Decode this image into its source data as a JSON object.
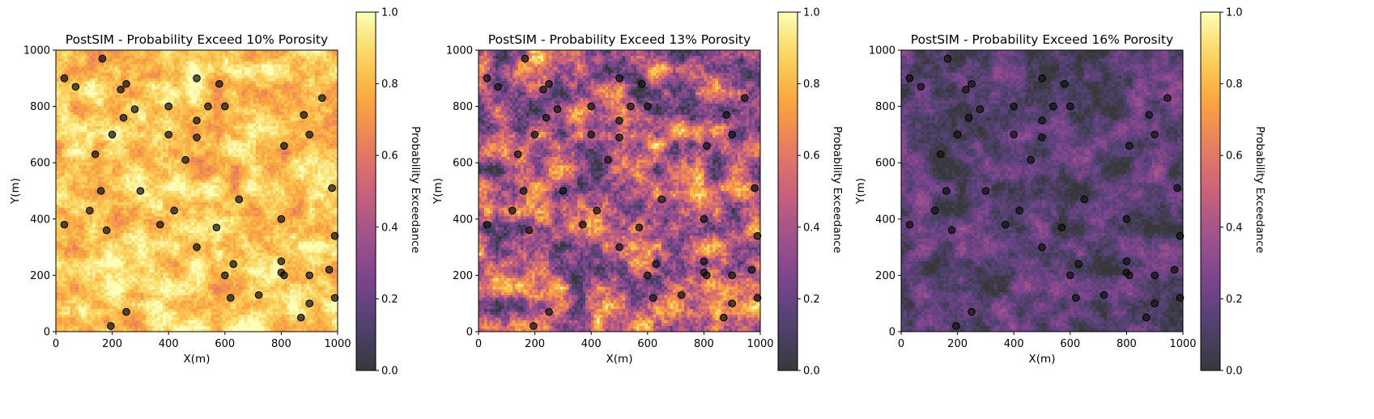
{
  "chart_data": [
    {
      "type": "heatmap",
      "title": "PostSIM - Probability Exceed 10% Porosity",
      "xlabel": "X(m)",
      "ylabel": "Y(m)",
      "xlim": [
        0,
        1000
      ],
      "ylim": [
        0,
        1000
      ],
      "xticks": [
        "0",
        "200",
        "400",
        "600",
        "800",
        "1000"
      ],
      "yticks": [
        "0",
        "200",
        "400",
        "600",
        "800",
        "1000"
      ],
      "colorbar": {
        "label": "Probability Exceedance",
        "range": [
          0,
          1
        ],
        "ticks": [
          "0.0",
          "0.2",
          "0.4",
          "0.6",
          "0.8",
          "1.0"
        ],
        "colormap": "inferno"
      },
      "field_mean_probability": 0.85,
      "grid_cells": [
        100,
        100
      ],
      "overlay_points": "well locations (dark circles)"
    },
    {
      "type": "heatmap",
      "title": "PostSIM - Probability Exceed 13% Porosity",
      "xlabel": "X(m)",
      "ylabel": "Y(m)",
      "xlim": [
        0,
        1000
      ],
      "ylim": [
        0,
        1000
      ],
      "xticks": [
        "0",
        "200",
        "400",
        "600",
        "800",
        "1000"
      ],
      "yticks": [
        "0",
        "200",
        "400",
        "600",
        "800",
        "1000"
      ],
      "colorbar": {
        "label": "Probability Exceedance",
        "range": [
          0,
          1
        ],
        "ticks": [
          "0.0",
          "0.2",
          "0.4",
          "0.6",
          "0.8",
          "1.0"
        ],
        "colormap": "inferno"
      },
      "field_mean_probability": 0.45,
      "grid_cells": [
        100,
        100
      ],
      "overlay_points": "well locations (dark circles)"
    },
    {
      "type": "heatmap",
      "title": "PostSIM - Probability Exceed 16% Porosity",
      "xlabel": "X(m)",
      "ylabel": "Y(m)",
      "xlim": [
        0,
        1000
      ],
      "ylim": [
        0,
        1000
      ],
      "xticks": [
        "0",
        "200",
        "400",
        "600",
        "800",
        "1000"
      ],
      "yticks": [
        "0",
        "200",
        "400",
        "600",
        "800",
        "1000"
      ],
      "colorbar": {
        "label": "Probability Exceedance",
        "range": [
          0,
          1
        ],
        "ticks": [
          "0.0",
          "0.2",
          "0.4",
          "0.6",
          "0.8",
          "1.0"
        ],
        "colormap": "inferno"
      },
      "field_mean_probability": 0.15,
      "grid_cells": [
        100,
        100
      ],
      "overlay_points": "well locations (dark circles)"
    }
  ],
  "wells": [
    [
      30,
      900
    ],
    [
      70,
      870
    ],
    [
      165,
      970
    ],
    [
      230,
      860
    ],
    [
      250,
      880
    ],
    [
      500,
      900
    ],
    [
      580,
      880
    ],
    [
      400,
      800
    ],
    [
      540,
      800
    ],
    [
      600,
      800
    ],
    [
      280,
      790
    ],
    [
      240,
      760
    ],
    [
      500,
      750
    ],
    [
      945,
      830
    ],
    [
      880,
      770
    ],
    [
      900,
      700
    ],
    [
      400,
      700
    ],
    [
      200,
      700
    ],
    [
      500,
      690
    ],
    [
      810,
      660
    ],
    [
      140,
      630
    ],
    [
      460,
      610
    ],
    [
      300,
      500
    ],
    [
      160,
      500
    ],
    [
      980,
      510
    ],
    [
      650,
      470
    ],
    [
      120,
      430
    ],
    [
      420,
      430
    ],
    [
      30,
      380
    ],
    [
      370,
      380
    ],
    [
      570,
      370
    ],
    [
      800,
      400
    ],
    [
      180,
      360
    ],
    [
      990,
      340
    ],
    [
      500,
      300
    ],
    [
      800,
      250
    ],
    [
      630,
      240
    ],
    [
      970,
      220
    ],
    [
      600,
      200
    ],
    [
      800,
      210
    ],
    [
      810,
      200
    ],
    [
      900,
      200
    ],
    [
      720,
      130
    ],
    [
      620,
      120
    ],
    [
      990,
      120
    ],
    [
      250,
      70
    ],
    [
      900,
      100
    ],
    [
      870,
      50
    ],
    [
      195,
      20
    ]
  ]
}
